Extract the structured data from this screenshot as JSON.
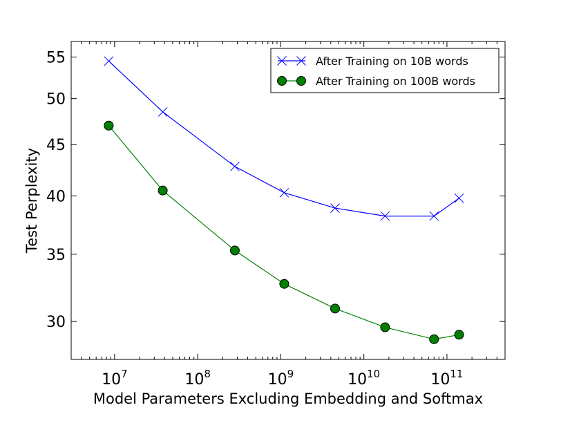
{
  "chart_data": {
    "type": "line",
    "title": "",
    "xlabel": "Model Parameters Excluding Embedding and Softmax",
    "ylabel": "Test Perplexity",
    "xscale": "log",
    "yscale": "log",
    "xlim": [
      3000000,
      500000000000
    ],
    "ylim": [
      27.5,
      57
    ],
    "grid": false,
    "legend": "top-right",
    "xticks": [
      {
        "value": 10000000,
        "base": "10",
        "exp": "7"
      },
      {
        "value": 100000000,
        "base": "10",
        "exp": "8"
      },
      {
        "value": 1000000000,
        "base": "10",
        "exp": "9"
      },
      {
        "value": 10000000000,
        "base": "10",
        "exp": "10"
      },
      {
        "value": 100000000000,
        "base": "10",
        "exp": "11"
      }
    ],
    "yticks": [
      {
        "value": 30,
        "label": "30"
      },
      {
        "value": 35,
        "label": "35"
      },
      {
        "value": 40,
        "label": "40"
      },
      {
        "value": 45,
        "label": "45"
      },
      {
        "value": 50,
        "label": "50"
      },
      {
        "value": 55,
        "label": "55"
      }
    ],
    "series": [
      {
        "name": "After Training on 10B words",
        "color": "#0000ff",
        "marker": "x",
        "x": [
          8500000,
          38000000,
          280000000,
          1100000000,
          4500000000,
          18000000000,
          70000000000,
          140000000000
        ],
        "y": [
          54.5,
          48.5,
          42.8,
          40.3,
          38.9,
          38.2,
          38.2,
          39.8
        ]
      },
      {
        "name": "After Training on 100B words",
        "color": "#008000",
        "marker": "o",
        "x": [
          8500000,
          38000000,
          280000000,
          1100000000,
          4500000000,
          18000000000,
          70000000000,
          140000000000
        ],
        "y": [
          47.0,
          40.5,
          35.3,
          32.7,
          30.9,
          29.6,
          28.8,
          29.1
        ]
      }
    ]
  }
}
